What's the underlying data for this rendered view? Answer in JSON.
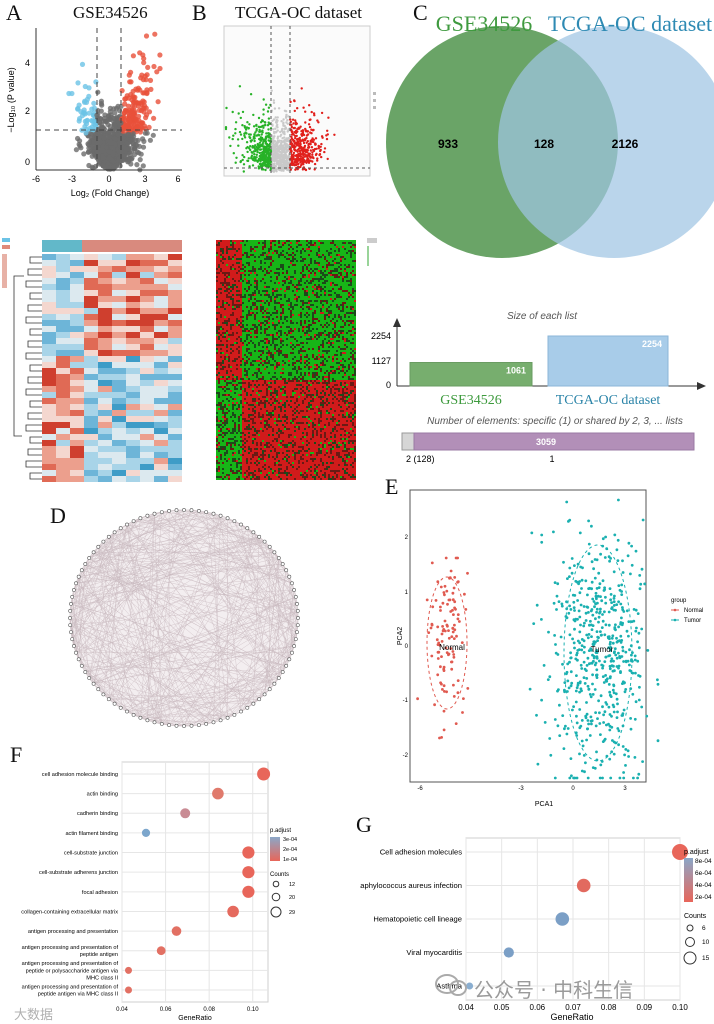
{
  "panel_labels": {
    "A": "A",
    "B": "B",
    "C": "C",
    "D": "D",
    "E": "E",
    "F": "F",
    "G": "G"
  },
  "colors": {
    "up": "#e8503a",
    "down": "#6cc3e6",
    "ns": "#6b6b6b",
    "venn_left": "#5a9a57",
    "venn_right": "#9fc5e3",
    "pca_normal": "#e05a50",
    "pca_tumor": "#1ab0b0",
    "bar_left": "#77ae6e",
    "bar_right": "#a8cce9",
    "bar_combo": "#b28fb8"
  },
  "panelA": {
    "title": "GSE34526",
    "xlabel": "Log₂ (Fold Change)",
    "ylabel": "−Log₁₀ (P value)",
    "xticks": [
      "-6",
      "-3",
      "0",
      "3",
      "6"
    ],
    "yticks": [
      "0",
      "2",
      "4"
    ],
    "xlim": [
      -6,
      6
    ],
    "ylim": [
      0,
      5
    ]
  },
  "panelB": {
    "title": "TCGA-OC dataset"
  },
  "panelC": {
    "left_label": "GSE34526",
    "right_label": "TCGA-OC dataset",
    "left_only": "933",
    "shared": "128",
    "right_only": "2126"
  },
  "chart_data": [
    {
      "type": "bar",
      "title": "Size of each list",
      "categories": [
        "GSE34526",
        "TCGA-OC dataset"
      ],
      "values": [
        1061,
        2254
      ],
      "value_labels": [
        "1061",
        "2254"
      ],
      "yticks": [
        "0",
        "1127",
        "2254"
      ],
      "ylim": [
        0,
        2254
      ]
    },
    {
      "type": "bar",
      "title": "Number of elements: specific (1) or shared by 2, 3, ... lists",
      "categories": [
        "2 (128)",
        "1"
      ],
      "values": [
        128,
        3059
      ],
      "value_labels": [
        "",
        "3059"
      ]
    },
    {
      "type": "scatter",
      "title": "PCA",
      "xlabel": "PCA1",
      "ylabel": "PCA2",
      "xticks": [
        "-6",
        "-3",
        "0",
        "3"
      ],
      "yticks": [
        "2",
        "1",
        "0",
        "-1",
        "-2"
      ],
      "legend_title": "group",
      "series": [
        {
          "name": "Normal",
          "center": [
            -5,
            0.2
          ]
        },
        {
          "name": "Tumor",
          "center": [
            1,
            0
          ]
        }
      ],
      "annotations": [
        "Normal",
        "Tumor"
      ]
    },
    {
      "type": "scatter",
      "title": "GO enrichment",
      "xlabel": "GeneRatio",
      "xticks": [
        "0.04",
        "0.06",
        "0.08",
        "0.10"
      ],
      "xlim": [
        0.04,
        0.107
      ],
      "categories": [
        "cell adhesion molecule binding",
        "actin binding",
        "cadherin binding",
        "actin filament binding",
        "cell-substrate junction",
        "cell-substrate adherens junction",
        "focal adhesion",
        "collagen-containing extracellular matrix",
        "antigen processing and presentation",
        "antigen processing and presentation of\npeptide antigen",
        "antigen processing and presentation of\npeptide or polysaccharide antigen via\nMHC class II",
        "antigen processing and presentation of\npeptide antigen via MHC class II"
      ],
      "x": [
        0.105,
        0.084,
        0.069,
        0.051,
        0.098,
        0.098,
        0.098,
        0.091,
        0.065,
        0.058,
        0.043,
        0.043
      ],
      "counts": [
        26,
        22,
        18,
        13,
        24,
        24,
        24,
        22,
        17,
        15,
        10,
        10
      ],
      "legend_padjust_title": "p.adjust",
      "legend_padjust": [
        "3e-04",
        "2e-04",
        "1e-04"
      ],
      "legend_counts_title": "Counts",
      "legend_counts": [
        "12",
        "20",
        "29"
      ]
    },
    {
      "type": "scatter",
      "title": "KEGG enrichment",
      "xlabel": "GeneRatio",
      "xticks": [
        "0.04",
        "0.05",
        "0.06",
        "0.07",
        "0.08",
        "0.09",
        "0.10"
      ],
      "xlim": [
        0.04,
        0.1
      ],
      "categories": [
        "Cell adhesion molecules",
        "Staphylococcus aureus infection",
        "Hematopoietic cell lineage",
        "Viral myocarditis",
        "Asthma"
      ],
      "x": [
        0.1,
        0.073,
        0.067,
        0.052,
        0.041
      ],
      "counts": [
        15,
        12,
        12,
        8,
        4
      ],
      "legend_padjust_title": "p.adjust",
      "legend_padjust": [
        "8e-04",
        "6e-04",
        "4e-04",
        "2e-04"
      ],
      "legend_counts_title": "Counts",
      "legend_counts": [
        "6",
        "10",
        "15"
      ]
    }
  ],
  "watermark": {
    "main": "公众号 · 中科生信",
    "corner": "大数据"
  }
}
